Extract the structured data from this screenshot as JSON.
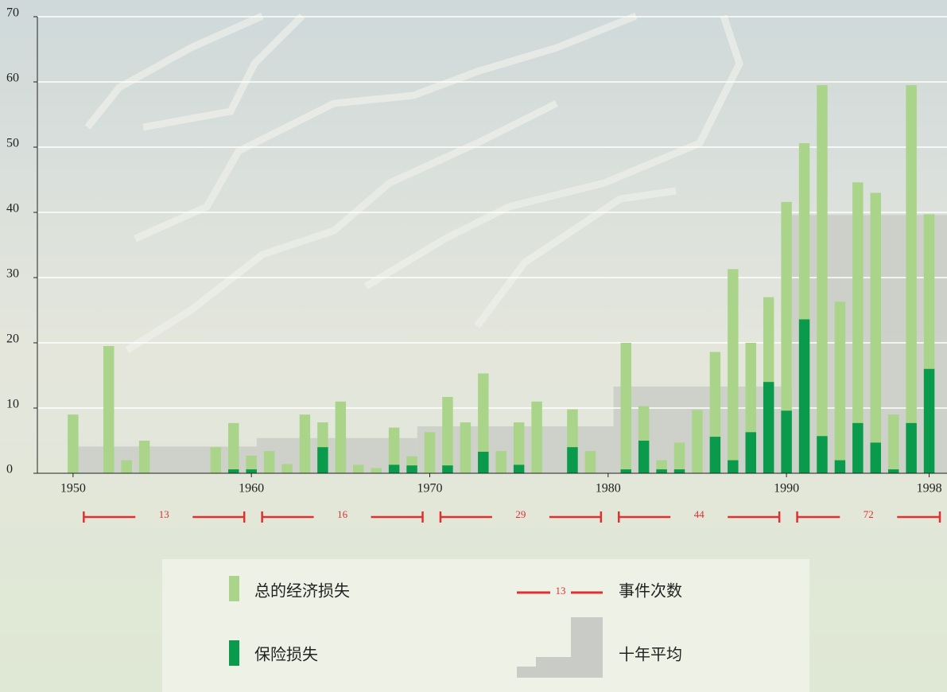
{
  "chart_data": {
    "type": "bar",
    "x": [
      1950,
      1951,
      1952,
      1953,
      1954,
      1955,
      1956,
      1957,
      1958,
      1959,
      1960,
      1961,
      1962,
      1963,
      1964,
      1965,
      1966,
      1967,
      1968,
      1969,
      1970,
      1971,
      1972,
      1973,
      1974,
      1975,
      1976,
      1977,
      1978,
      1979,
      1980,
      1981,
      1982,
      1983,
      1984,
      1985,
      1986,
      1987,
      1988,
      1989,
      1990,
      1991,
      1992,
      1993,
      1994,
      1995,
      1996,
      1997,
      1998
    ],
    "series": [
      {
        "name": "总的经济损失",
        "color": "#a9d48a",
        "values": [
          9,
          0,
          19.5,
          2,
          5,
          0,
          0,
          0,
          4,
          7.7,
          2.7,
          3.4,
          1.4,
          9,
          7.8,
          11,
          1.3,
          0.8,
          7,
          2.6,
          6.3,
          11.7,
          7.8,
          15.3,
          3.4,
          7.8,
          11,
          0,
          9.8,
          3.4,
          0,
          20,
          10.3,
          2,
          4.7,
          9.7,
          18.6,
          31.3,
          20,
          27,
          41.6,
          50.6,
          59.5,
          26.3,
          44.6,
          43,
          9,
          59.5,
          39.7
        ]
      },
      {
        "name": "保险损失",
        "color": "#0a9a4c",
        "values": [
          0,
          0,
          0,
          0,
          0,
          0,
          0,
          0,
          0,
          0.6,
          0.6,
          0,
          0,
          0,
          4,
          0,
          0,
          0,
          1.3,
          1.2,
          0,
          1.2,
          0,
          3.3,
          0,
          1.3,
          0,
          0,
          4,
          0,
          0,
          0.6,
          5,
          0.6,
          0.6,
          0,
          5.6,
          2,
          6.3,
          14,
          9.6,
          23.6,
          5.7,
          2,
          7.7,
          4.7,
          0.6,
          7.7,
          16
        ]
      }
    ],
    "averages": {
      "name": "十年平均",
      "color": "#c9ccc6",
      "periods": [
        {
          "from": 1950,
          "to": 1960,
          "value": 4.1
        },
        {
          "from": 1960,
          "to": 1969,
          "value": 5.4
        },
        {
          "from": 1969,
          "to": 1980,
          "value": 7.2
        },
        {
          "from": 1980,
          "to": 1990,
          "value": 13.3
        },
        {
          "from": 1990,
          "to": 1999,
          "value": 39.6
        }
      ]
    },
    "event_counts": {
      "name": "事件次数",
      "legend_sample": 13,
      "periods": [
        {
          "from": 1950,
          "to": 1959,
          "value": 13
        },
        {
          "from": 1960,
          "to": 1969,
          "value": 16
        },
        {
          "from": 1970,
          "to": 1979,
          "value": 29
        },
        {
          "from": 1980,
          "to": 1989,
          "value": 44
        },
        {
          "from": 1990,
          "to": 1998,
          "value": 72
        }
      ]
    },
    "xlim": [
      1948,
      1999
    ],
    "xticks": [
      1950,
      1960,
      1970,
      1980,
      1990,
      1998
    ],
    "ylim": [
      0,
      70
    ],
    "yticks": [
      0,
      10,
      20,
      30,
      40,
      50,
      60,
      70
    ],
    "grid": true
  }
}
